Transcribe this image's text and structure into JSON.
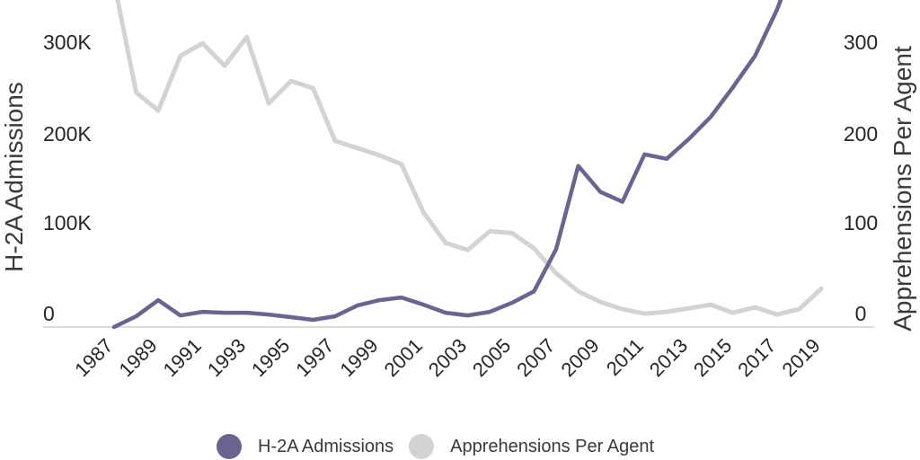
{
  "chart_data": {
    "type": "line",
    "title": "",
    "grid": false,
    "legend_position": "bottom",
    "plot_cropped_at_top": true,
    "x": [
      1987,
      1988,
      1989,
      1990,
      1991,
      1992,
      1993,
      1994,
      1995,
      1996,
      1997,
      1998,
      1999,
      2000,
      2001,
      2002,
      2003,
      2004,
      2005,
      2006,
      2007,
      2008,
      2009,
      2010,
      2011,
      2012,
      2013,
      2014,
      2015,
      2016,
      2017,
      2018,
      2019
    ],
    "x_tick_labels": [
      "1987",
      "1989",
      "1991",
      "1993",
      "1995",
      "1997",
      "1999",
      "2001",
      "2003",
      "2005",
      "2007",
      "2009",
      "2011",
      "2013",
      "2015",
      "2017",
      "2019"
    ],
    "axes": {
      "left": {
        "label": "H-2A Admissions",
        "tick_labels": [
          "0",
          "100K",
          "200K",
          "300K"
        ],
        "tick_values_thousands": [
          0,
          100,
          200,
          300
        ],
        "unit": "thousands"
      },
      "right": {
        "label": "Apprehensions Per Agent",
        "tick_labels": [
          "0",
          "100",
          "200",
          "300"
        ],
        "tick_values": [
          0,
          100,
          200,
          300
        ]
      }
    },
    "series": [
      {
        "name": "H-2A Admissions",
        "axis": "left",
        "unit": "thousands",
        "color": "#6b6490",
        "values_thousands": [
          0,
          12,
          30,
          13,
          17,
          16,
          16,
          14,
          11,
          8,
          12,
          24,
          30,
          33,
          25,
          16,
          13,
          17,
          27,
          40,
          87,
          180,
          151,
          140,
          193,
          188,
          210,
          235,
          268,
          303,
          355,
          420,
          510
        ]
      },
      {
        "name": "Apprehensions Per Agent",
        "axis": "right",
        "unit": "apprehensions per agent",
        "color": "#d3d3d5",
        "values": [
          385,
          262,
          242,
          303,
          317,
          292,
          324,
          250,
          275,
          267,
          208,
          200,
          192,
          182,
          128,
          94,
          86,
          107,
          105,
          88,
          60,
          40,
          28,
          20,
          15,
          17,
          21,
          25,
          16,
          22,
          14,
          20,
          43
        ]
      }
    ]
  },
  "colors": {
    "background": "#ffffff",
    "axis_line": "#dcdcdc",
    "tick_text": "#262626",
    "axis_title_text": "#3a3a3a",
    "legend_text": "#3a3a3a",
    "h2a_line": "#6b6490",
    "apprehensions_line": "#d3d3d5"
  }
}
